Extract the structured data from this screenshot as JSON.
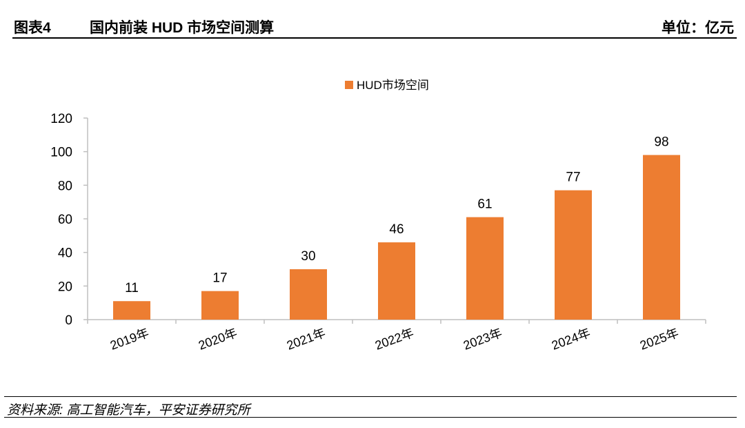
{
  "header": {
    "figure_number": "图表4",
    "title": "国内前装 HUD 市场空间测算",
    "unit": "单位：亿元"
  },
  "chart_data": {
    "type": "bar",
    "title": "",
    "xlabel": "",
    "ylabel": "",
    "categories": [
      "2019年",
      "2020年",
      "2021年",
      "2022年",
      "2023年",
      "2024年",
      "2025年"
    ],
    "series": [
      {
        "name": "HUD市场空间",
        "values": [
          11,
          17,
          30,
          46,
          61,
          77,
          98
        ]
      }
    ],
    "ylim": [
      0,
      120
    ],
    "yticks": [
      "0",
      "20",
      "40",
      "60",
      "80",
      "100",
      "120"
    ],
    "data_labels": true,
    "legend_position": "top-center",
    "grid": false,
    "colors": {
      "bar": "#ED7D31",
      "axis": "#BFBFBF"
    }
  },
  "footer": {
    "source": "资料来源: 高工智能汽车，平安证券研究所"
  }
}
